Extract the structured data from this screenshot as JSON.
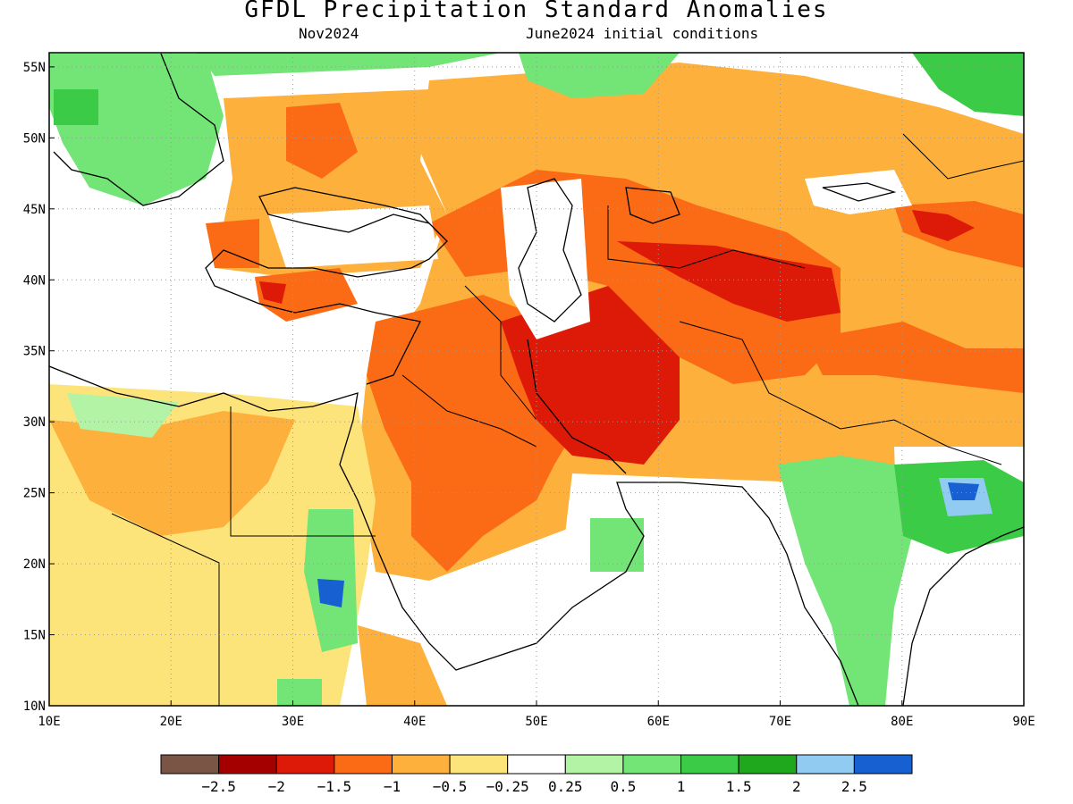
{
  "header": {
    "title": "GFDL Precipitation Standard Anomalies",
    "valid_month": "Nov2024",
    "initial_conditions": "June2024 initial conditions"
  },
  "axes": {
    "lon_labels": [
      "10E",
      "20E",
      "30E",
      "40E",
      "50E",
      "60E",
      "70E",
      "80E",
      "90E"
    ],
    "lat_labels": [
      "55N",
      "50N",
      "45N",
      "40N",
      "35N",
      "30N",
      "25N",
      "20N",
      "15N",
      "10N"
    ],
    "lon_range": [
      10,
      90
    ],
    "lat_range": [
      10,
      56
    ],
    "grid": "dotted"
  },
  "legend": {
    "colors": [
      "#7a5546",
      "#a50000",
      "#dd1a08",
      "#fb6a14",
      "#fdb03c",
      "#fde47a",
      "#ffffff",
      "#b2f3a5",
      "#72e576",
      "#3ccb46",
      "#1fa71e",
      "#92cbf2",
      "#1660d2"
    ],
    "labels": [
      "−2.5",
      "−2",
      "−1.5",
      "−1",
      "−0.5",
      "−0.25",
      "0.25",
      "0.5",
      "1",
      "1.5",
      "2",
      "2.5"
    ]
  },
  "regions": [
    {
      "name": "arabia-central-dry",
      "level": -1
    },
    {
      "name": "iran-afghanistan-core",
      "level": -1.5
    },
    {
      "name": "central-asia-core",
      "level": -1.5
    },
    {
      "name": "tibet-west",
      "level": -1
    },
    {
      "name": "eastern-europe",
      "level": -0.5
    },
    {
      "name": "northern-africa",
      "level": -0.25
    },
    {
      "name": "northwest-europe-wet",
      "level": 1
    },
    {
      "name": "russia-north-wet",
      "level": 1
    },
    {
      "name": "india-east-wet",
      "level": 1
    },
    {
      "name": "bengal-max",
      "level": 2.5
    },
    {
      "name": "sudan-wet",
      "level": 1
    }
  ]
}
